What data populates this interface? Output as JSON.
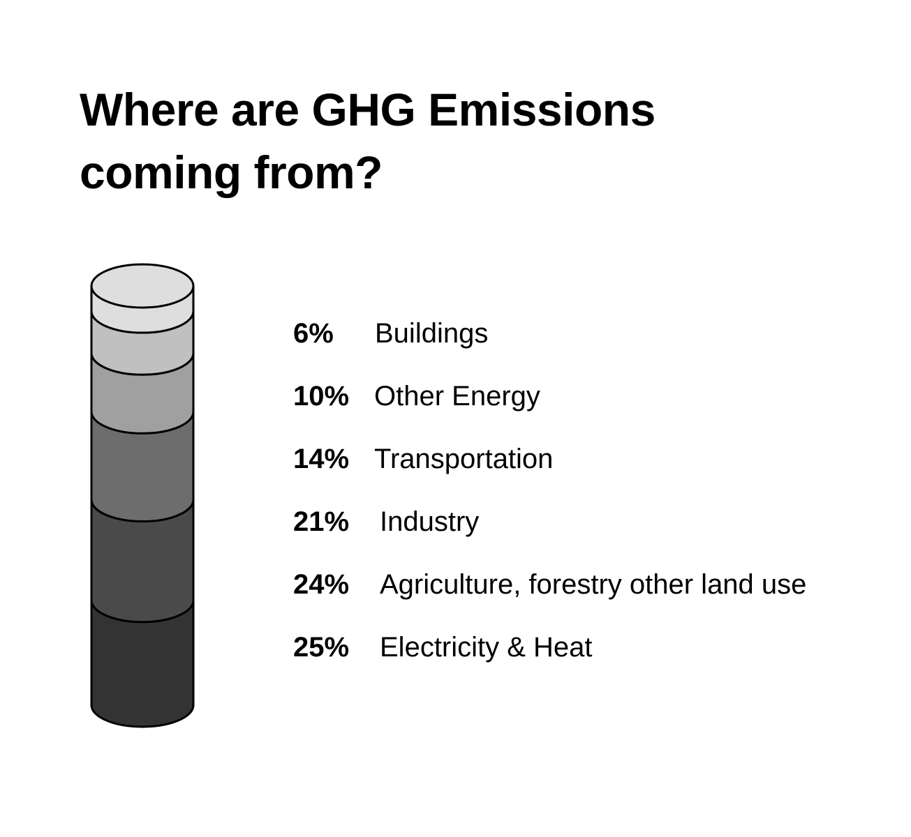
{
  "title_line1": "Where are GHG Emissions",
  "title_line2": "coming from?",
  "chart_data": {
    "type": "stacked-cylinder",
    "unit": "%",
    "segments": [
      {
        "label": "Electricity & Heat",
        "pct_label": "25%",
        "value": 25,
        "color": "#333333"
      },
      {
        "label": "Agriculture, forestry other land use",
        "pct_label": "24%",
        "value": 24,
        "color": "#4a4a4a"
      },
      {
        "label": "Industry",
        "pct_label": "21%",
        "value": 21,
        "color": "#6d6d6d"
      },
      {
        "label": "Transportation",
        "pct_label": "14%",
        "value": 14,
        "color": "#a0a0a0"
      },
      {
        "label": "Other Energy",
        "pct_label": "10%",
        "value": 10,
        "color": "#c0c0c0"
      },
      {
        "label": "Buildings",
        "pct_label": "6%",
        "value": 6,
        "color": "#dedede"
      }
    ]
  },
  "legend": [
    {
      "pct": "6%",
      "label": "Buildings"
    },
    {
      "pct": "10%",
      "label": "Other Energy"
    },
    {
      "pct": "14%",
      "label": "Transportation"
    },
    {
      "pct": "21%",
      "label": "Industry"
    },
    {
      "pct": "24%",
      "label": "Agriculture, forestry other land use"
    },
    {
      "pct": "25%",
      "label": "Electricity & Heat"
    }
  ]
}
